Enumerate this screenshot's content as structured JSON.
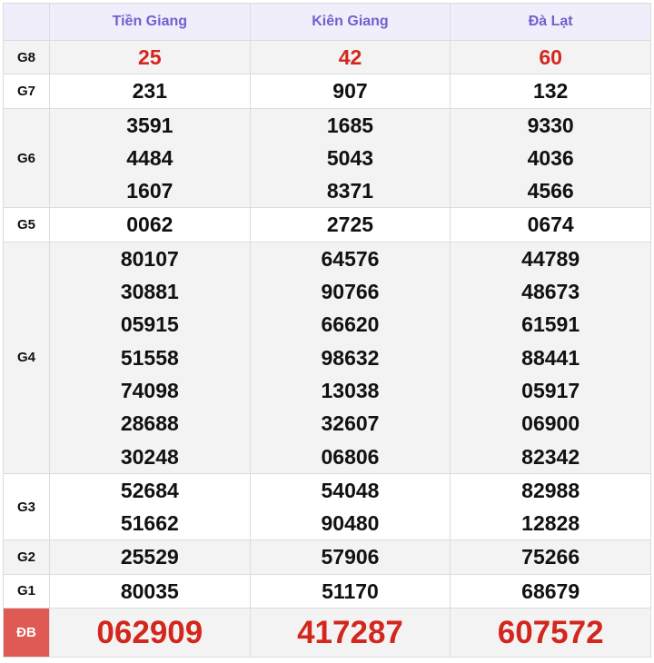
{
  "provinces": [
    "Tiền Giang",
    "Kiên Giang",
    "Đà Lạt"
  ],
  "prizes": [
    {
      "label": "G8",
      "values": [
        [
          "25"
        ],
        [
          "42"
        ],
        [
          "60"
        ]
      ],
      "highlight": true
    },
    {
      "label": "G7",
      "values": [
        [
          "231"
        ],
        [
          "907"
        ],
        [
          "132"
        ]
      ]
    },
    {
      "label": "G6",
      "values": [
        [
          "3591",
          "4484",
          "1607"
        ],
        [
          "1685",
          "5043",
          "8371"
        ],
        [
          "9330",
          "4036",
          "4566"
        ]
      ]
    },
    {
      "label": "G5",
      "values": [
        [
          "0062"
        ],
        [
          "2725"
        ],
        [
          "0674"
        ]
      ]
    },
    {
      "label": "G4",
      "values": [
        [
          "80107",
          "30881",
          "05915",
          "51558",
          "74098",
          "28688",
          "30248"
        ],
        [
          "64576",
          "90766",
          "66620",
          "98632",
          "13038",
          "32607",
          "06806"
        ],
        [
          "44789",
          "48673",
          "61591",
          "88441",
          "05917",
          "06900",
          "82342"
        ]
      ]
    },
    {
      "label": "G3",
      "values": [
        [
          "52684",
          "51662"
        ],
        [
          "54048",
          "90480"
        ],
        [
          "82988",
          "12828"
        ]
      ]
    },
    {
      "label": "G2",
      "values": [
        [
          "25529"
        ],
        [
          "57906"
        ],
        [
          "75266"
        ]
      ]
    },
    {
      "label": "G1",
      "values": [
        [
          "80035"
        ],
        [
          "51170"
        ],
        [
          "68679"
        ]
      ]
    },
    {
      "label": "ĐB",
      "values": [
        [
          "062909"
        ],
        [
          "417287"
        ],
        [
          "607572"
        ]
      ],
      "special": true
    }
  ],
  "colors": {
    "header_text": "#7060d0",
    "prize_red": "#d3261c",
    "db_label_bg": "#e05a55"
  }
}
